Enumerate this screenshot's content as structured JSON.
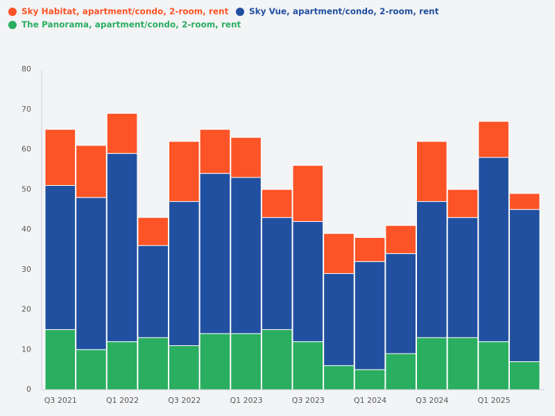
{
  "chart_data": {
    "type": "stacked_bar",
    "categories": [
      "Q3 2021",
      null,
      "Q1 2022",
      null,
      "Q3 2022",
      null,
      "Q1 2023",
      null,
      "Q3 2023",
      null,
      "Q1 2024",
      null,
      "Q3 2024",
      null,
      "Q1 2025",
      null
    ],
    "series": [
      {
        "name": "Sky Habitat, apartment/condo, 2-room, rent",
        "color": "#fc5427",
        "values": [
          14,
          13,
          10,
          7,
          15,
          11,
          10,
          7,
          14,
          10,
          6,
          7,
          15,
          7,
          9,
          4
        ]
      },
      {
        "name": "Sky Vue, apartment/condo, 2-room, rent",
        "color": "#2150a0",
        "values": [
          36,
          38,
          47,
          23,
          36,
          40,
          39,
          28,
          30,
          23,
          27,
          25,
          34,
          30,
          46,
          38
        ]
      },
      {
        "name": "The Panorama, apartment/condo, 2-room, rent",
        "color": "#2aae60",
        "values": [
          15,
          10,
          12,
          13,
          11,
          14,
          14,
          15,
          12,
          6,
          5,
          9,
          13,
          13,
          12,
          7
        ]
      }
    ],
    "ylim": [
      0,
      80
    ],
    "yticks": [
      0,
      10,
      20,
      30,
      40,
      50,
      60,
      70,
      80
    ],
    "grid": false
  }
}
